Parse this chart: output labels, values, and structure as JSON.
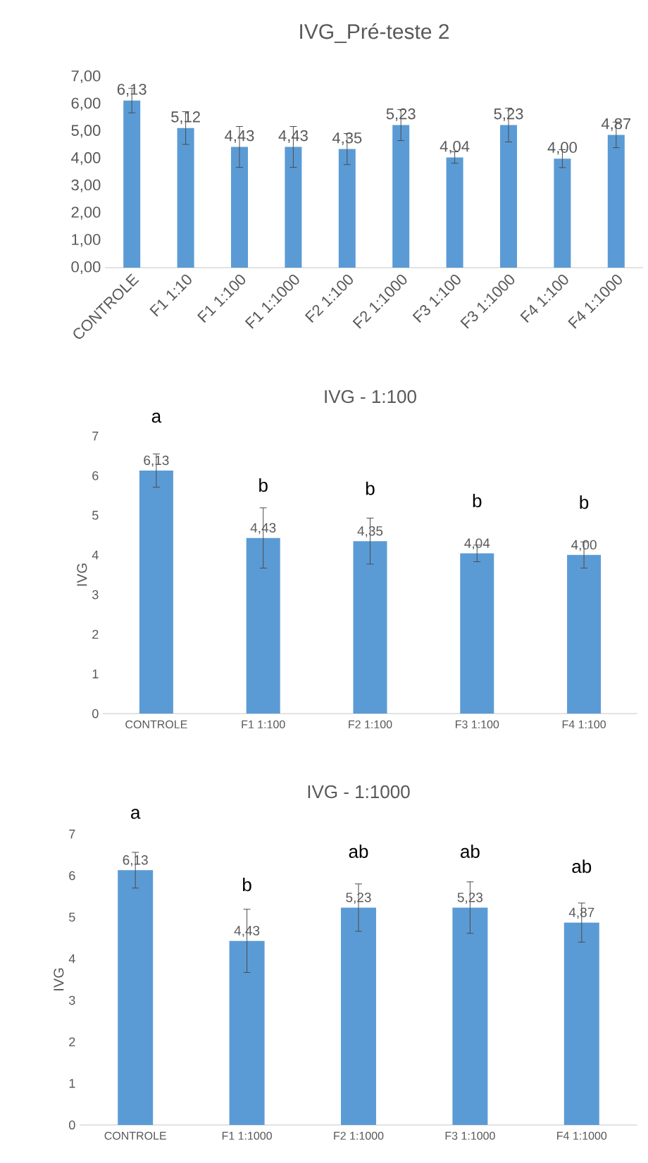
{
  "chart_data": [
    {
      "type": "bar",
      "title": "IVG_Pré-teste 2",
      "color": "#5b9bd5",
      "categories": [
        "CONTROLE",
        "F1 1:10",
        "F1 1:100",
        "F1 1:1000",
        "F2 1:100",
        "F2 1:1000",
        "F3 1:100",
        "F3 1:1000",
        "F4 1:100",
        "F4 1:1000"
      ],
      "values": [
        6.13,
        5.12,
        4.43,
        4.43,
        4.35,
        5.23,
        4.04,
        5.23,
        4.0,
        4.87
      ],
      "errors": [
        0.45,
        0.6,
        0.75,
        0.75,
        0.57,
        0.57,
        0.21,
        0.62,
        0.33,
        0.47
      ],
      "value_labels": [
        "6,13",
        "5,12",
        "4,43",
        "4,43",
        "4,35",
        "5,23",
        "4,04",
        "5,23",
        "4,00",
        "4,87"
      ],
      "ylim": [
        0,
        7
      ],
      "yticks": [
        {
          "value": 0,
          "label": "0,00"
        },
        {
          "value": 1,
          "label": "1,00"
        },
        {
          "value": 2,
          "label": "2,00"
        },
        {
          "value": 3,
          "label": "3,00"
        },
        {
          "value": 4,
          "label": "4,00"
        },
        {
          "value": 5,
          "label": "5,00"
        },
        {
          "value": 6,
          "label": "6,00"
        },
        {
          "value": 7,
          "label": "7,00"
        }
      ]
    },
    {
      "type": "bar",
      "title": "IVG - 1:100",
      "ylabel": "IVG",
      "color": "#5b9bd5",
      "categories": [
        "CONTROLE",
        "F1 1:100",
        "F2 1:100",
        "F3 1:100",
        "F4 1:100"
      ],
      "values": [
        6.13,
        4.43,
        4.35,
        4.04,
        4.0
      ],
      "errors": [
        0.42,
        0.76,
        0.58,
        0.21,
        0.33
      ],
      "value_labels": [
        "6,13",
        "4,43",
        "4,35",
        "4,04",
        "4,00"
      ],
      "ylim": [
        0,
        7
      ],
      "yticks": [
        0,
        1,
        2,
        3,
        4,
        5,
        6,
        7
      ],
      "annotations": [
        {
          "text": "a",
          "x": "CONTROLE",
          "y": 6.13
        },
        {
          "text": "b",
          "x": "F1 1:100",
          "y": 4.43
        },
        {
          "text": "b",
          "x": "F2 1:100",
          "y": 4.35
        },
        {
          "text": "b",
          "x": "F3 1:100",
          "y": 4.04
        },
        {
          "text": "b",
          "x": "F4 1:100",
          "y": 4.0
        }
      ]
    },
    {
      "type": "bar",
      "title": "IVG - 1:1000",
      "ylabel": "IVG",
      "color": "#5b9bd5",
      "categories": [
        "CONTROLE",
        "F1 1:1000",
        "F2 1:1000",
        "F3 1:1000",
        "F4 1:1000"
      ],
      "values": [
        6.13,
        4.43,
        5.23,
        5.23,
        4.87
      ],
      "errors": [
        0.43,
        0.76,
        0.57,
        0.62,
        0.47
      ],
      "value_labels": [
        "6,13",
        "4,43",
        "5,23",
        "5,23",
        "4,87"
      ],
      "ylim": [
        0,
        7
      ],
      "yticks": [
        0,
        1,
        2,
        3,
        4,
        5,
        6,
        7
      ],
      "annotations": [
        {
          "text": "a",
          "x": "CONTROLE",
          "y": 6.13
        },
        {
          "text": "b",
          "x": "F1 1:1000",
          "y": 4.43
        },
        {
          "text": "ab",
          "x": "F2 1:1000",
          "y": 5.23
        },
        {
          "text": "ab",
          "x": "F3 1:1000",
          "y": 5.23
        },
        {
          "text": "ab",
          "x": "F4 1:1000",
          "y": 4.87
        }
      ]
    }
  ]
}
